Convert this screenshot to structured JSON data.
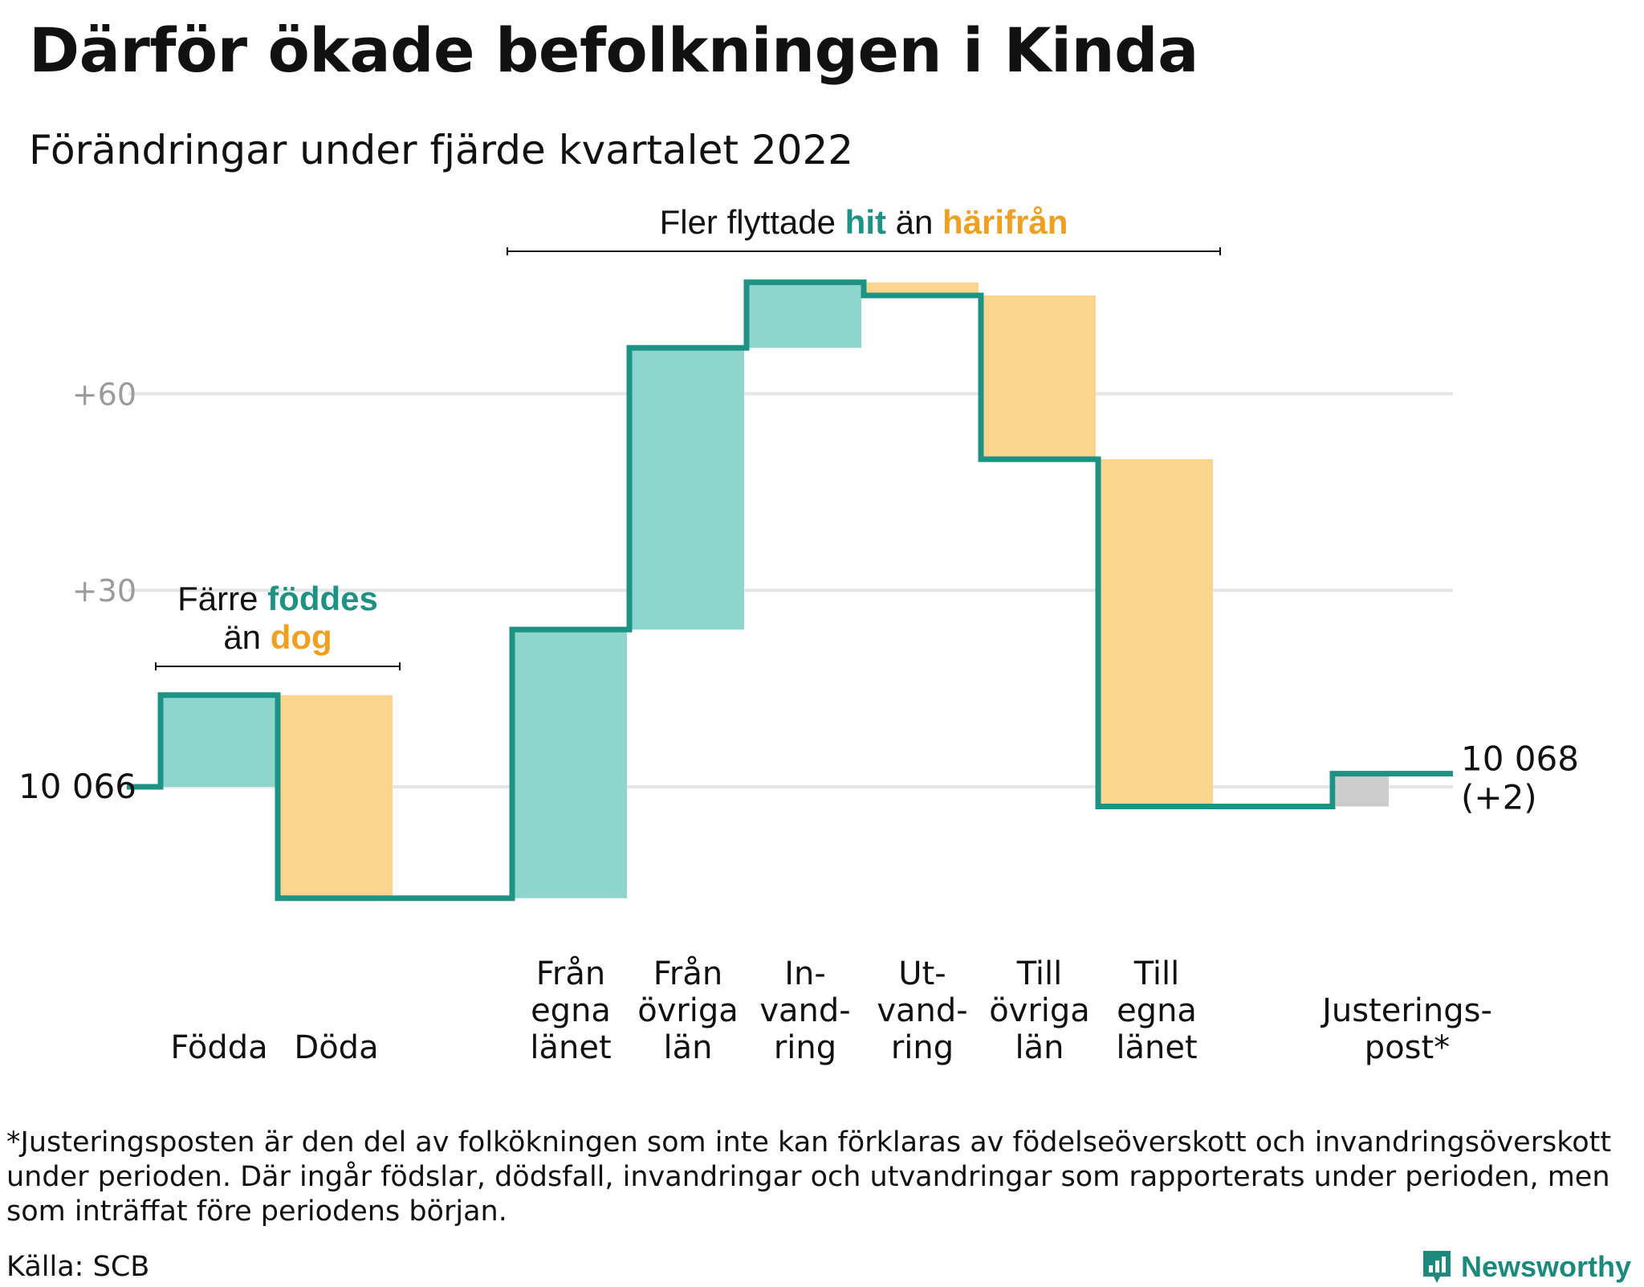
{
  "title": "Därför ökade befolkningen i Kinda",
  "subtitle": "Förändringar under fjärde kvartalet 2022",
  "colors": {
    "positive": "#8dd5cd",
    "negative": "#fbd58e",
    "adjustment": "#cccccc",
    "line": "#1c9384",
    "teal_text": "#1c9384",
    "orange_text": "#f0a020",
    "grid": "#e6e6e6",
    "axis_text": "#9b9b9b"
  },
  "chart_data": {
    "type": "waterfall",
    "baseline_value": 0,
    "start_label": "10 066",
    "end_label": "10 068",
    "end_change": "(+2)",
    "y_ticks": [
      {
        "value": 30,
        "label": "+30"
      },
      {
        "value": 60,
        "label": "+60"
      }
    ],
    "ylim": [
      -30,
      80
    ],
    "steps": [
      {
        "label_lines": [
          "Födda"
        ],
        "delta": 14,
        "kind": "positive"
      },
      {
        "label_lines": [
          "Döda"
        ],
        "delta": -31,
        "kind": "negative"
      },
      {
        "label_lines": [
          ""
        ],
        "delta": 0,
        "kind": "gap"
      },
      {
        "label_lines": [
          "Från",
          "egna",
          "länet"
        ],
        "delta": 41,
        "kind": "positive"
      },
      {
        "label_lines": [
          "Från",
          "övriga",
          "län"
        ],
        "delta": 43,
        "kind": "positive"
      },
      {
        "label_lines": [
          "In-",
          "vand-",
          "ring"
        ],
        "delta": 10,
        "kind": "positive"
      },
      {
        "label_lines": [
          "Ut-",
          "vand-",
          "ring"
        ],
        "delta": -2,
        "kind": "negative"
      },
      {
        "label_lines": [
          "Till",
          "övriga",
          "län"
        ],
        "delta": -25,
        "kind": "negative"
      },
      {
        "label_lines": [
          "Till",
          "egna",
          "länet"
        ],
        "delta": -53,
        "kind": "negative"
      },
      {
        "label_lines": [
          ""
        ],
        "delta": 0,
        "kind": "gap"
      },
      {
        "label_lines": [
          "Justerings-",
          "post*"
        ],
        "delta": 5,
        "kind": "adjustment"
      }
    ],
    "annotations": [
      {
        "parts": [
          [
            {
              "text": "Färre ",
              "style": "plain"
            },
            {
              "text": "föddes",
              "style": "teal"
            }
          ],
          [
            {
              "text": "än ",
              "style": "plain"
            },
            {
              "text": "dog",
              "style": "orange"
            }
          ]
        ],
        "span": [
          0,
          1
        ]
      },
      {
        "parts": [
          [
            {
              "text": "Fler flyttade ",
              "style": "plain"
            },
            {
              "text": "hit",
              "style": "teal"
            },
            {
              "text": " än ",
              "style": "plain"
            },
            {
              "text": "härifrån",
              "style": "orange"
            }
          ]
        ],
        "span": [
          3,
          8
        ]
      }
    ]
  },
  "footnote": "*Justeringsposten är den del av folkökningen som inte kan förklaras av födelseöverskott och invandringsöverskott under perioden. Där ingår födslar, dödsfall, invandringar och utvandringar som rapporterats under perioden, men som inträffat före periodens början.",
  "source": "Källa: SCB",
  "brand": {
    "name": "Newsworthy",
    "icon": "newsworthy-logo-icon"
  }
}
